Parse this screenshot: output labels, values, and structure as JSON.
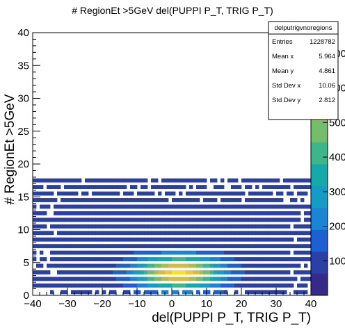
{
  "chart_data": {
    "type": "heatmap",
    "title": "# RegionEt >5GeV del(PUPPI P_T, TRIG P_T)",
    "xlabel": "del(PUPPI P_T, TRIG P_T)",
    "ylabel": "# RegionEt >5GeV",
    "xlim": [
      -40,
      40
    ],
    "ylim": [
      0,
      40
    ],
    "x_ticks": [
      "−40",
      "−30",
      "−20",
      "−10",
      "0",
      "10",
      "20",
      "30",
      "40"
    ],
    "y_ticks": [
      "0",
      "5",
      "10",
      "15",
      "20",
      "25",
      "30",
      "35",
      "40"
    ],
    "z_ticks": [
      "100",
      "200",
      "300",
      "400",
      "500",
      "600",
      "700"
    ],
    "zlim": [
      0,
      760
    ],
    "populated_rows_y": [
      1,
      2,
      3,
      4,
      5,
      6,
      7,
      8,
      9,
      10,
      11,
      12,
      13,
      14,
      15,
      16,
      17,
      18
    ],
    "row_x_range": [
      -40,
      40
    ],
    "first_row_x_range": [
      -35,
      40
    ],
    "peak": {
      "x": 2,
      "y": 3.5
    },
    "grid": false
  },
  "stats_box": {
    "name": "delputrigvnoregions",
    "rows": [
      {
        "label": "Entries",
        "value": "1228782"
      },
      {
        "label": "Mean x",
        "value": "5.964"
      },
      {
        "label": "Mean y",
        "value": "4.861"
      },
      {
        "label": "Std Dev x",
        "value": "10.06"
      },
      {
        "label": "Std Dev y",
        "value": "2.812"
      }
    ]
  },
  "colors": {
    "palette": [
      "#352a87",
      "#2b3fa5",
      "#1f5fd4",
      "#1c84d4",
      "#149bc6",
      "#16a9a9",
      "#3cb68a",
      "#74bd6c",
      "#a8be55",
      "#d4bb41",
      "#f3c436",
      "#f9e21f"
    ]
  }
}
